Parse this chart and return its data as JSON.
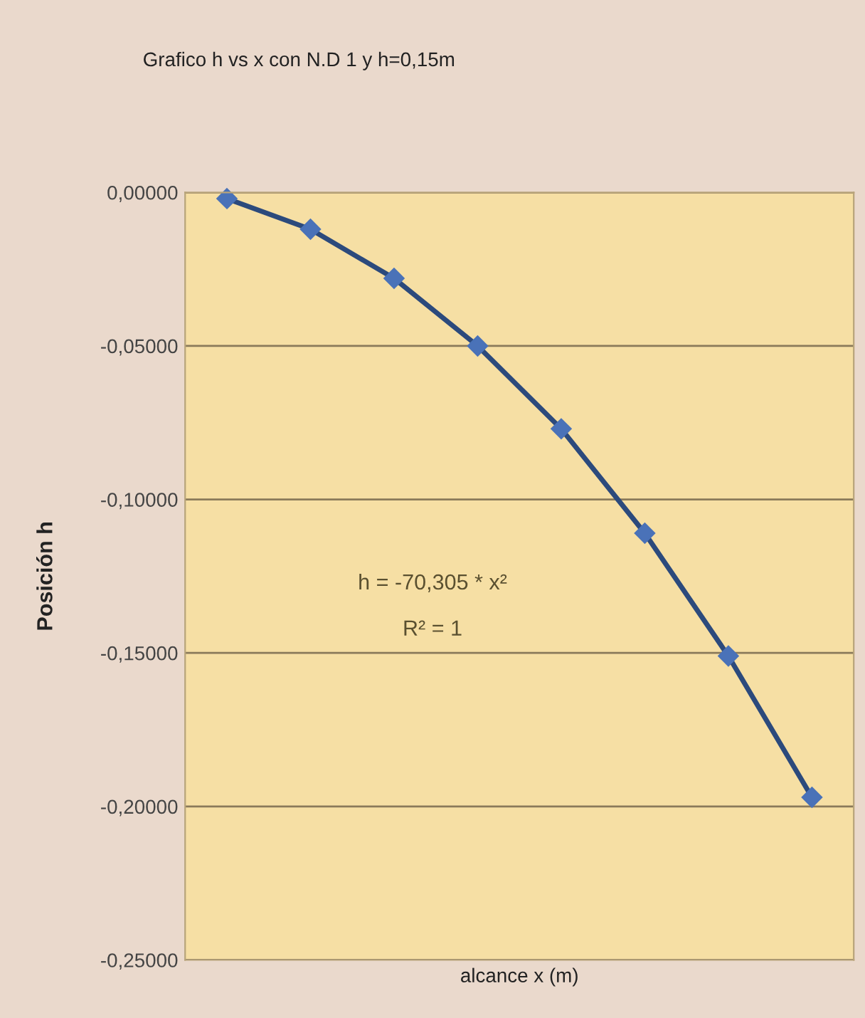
{
  "chart_data": {
    "type": "line",
    "title": "Grafico h vs x con N.D 1 y h=0,15m",
    "xlabel": "alcance x (m)",
    "ylabel": "Posición h",
    "categories": [
      null,
      null,
      null,
      null,
      null,
      null,
      null,
      null
    ],
    "series": [
      {
        "color": "#2c4a7c",
        "values": [
          -0.002,
          -0.012,
          -0.028,
          -0.05,
          -0.077,
          -0.111,
          -0.151,
          -0.197
        ]
      }
    ],
    "ylim": [
      -0.25,
      0
    ],
    "yticks": [
      {
        "value": 0,
        "label": "0,00000"
      },
      {
        "value": -0.05,
        "label": "-0,05000"
      },
      {
        "value": -0.1,
        "label": "-0,10000"
      },
      {
        "value": -0.15,
        "label": "-0,15000"
      },
      {
        "value": -0.2,
        "label": "-0,20000"
      },
      {
        "value": -0.25,
        "label": "-0,25000"
      }
    ],
    "tick_labels": "y",
    "grid": "y",
    "marker": "diamond",
    "line_style": "solid",
    "legend": false,
    "annotations": [
      "h = -70,305 * x²",
      "R² = 1"
    ]
  }
}
